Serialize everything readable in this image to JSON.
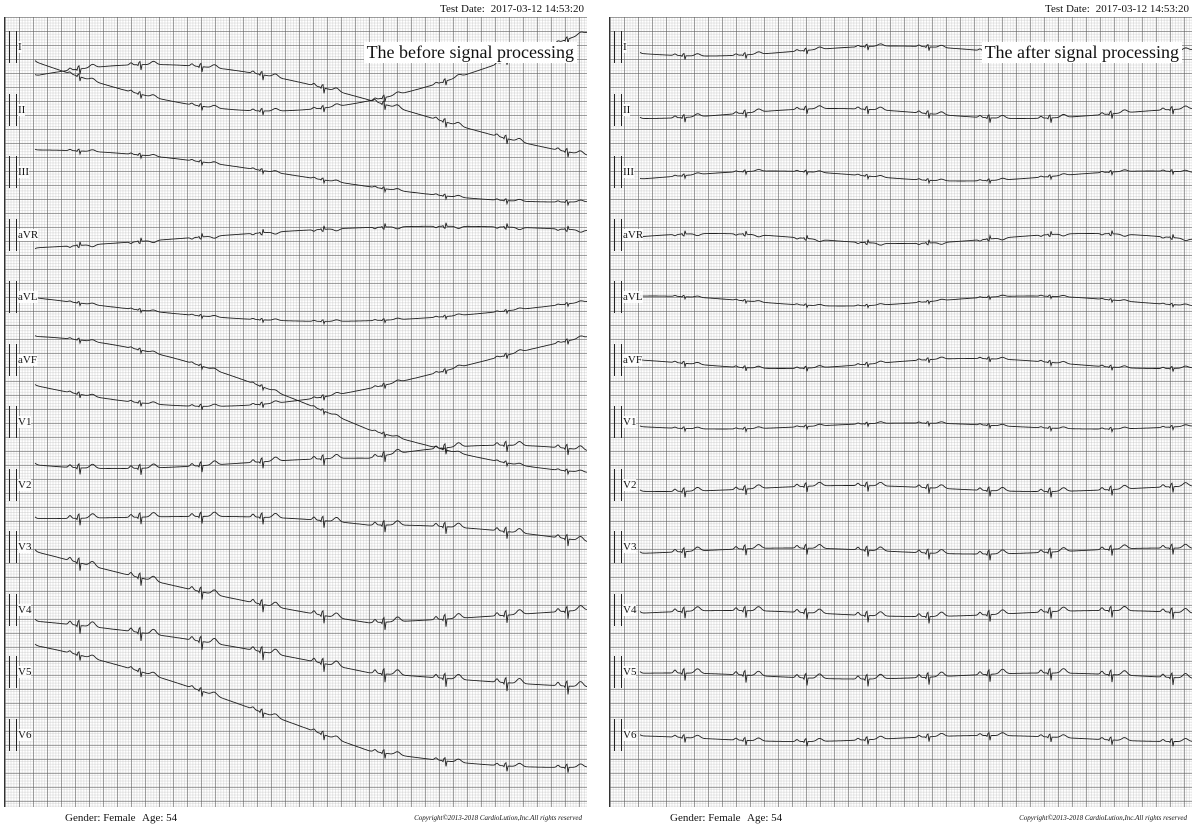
{
  "panels": [
    {
      "title": "The before signal processing",
      "test_date_label": "Test Date:",
      "test_date": "2017-03-12 14:53:20",
      "gender_label": "Gender:",
      "gender": "Female",
      "age_label": "Age:",
      "age": "54",
      "copyright": "Copyright©2013-2018 CardioLution,Inc.All rights reserved"
    },
    {
      "title": "The after signal processing",
      "test_date_label": "Test Date:",
      "test_date": "2017-03-12 14:53:20",
      "gender_label": "Gender:",
      "gender": "Female",
      "age_label": "Age:",
      "age": "54",
      "copyright": "Copyright©2013-2018 CardioLution,Inc.All rights reserved"
    }
  ],
  "leads": [
    "I",
    "II",
    "III",
    "aVR",
    "aVL",
    "aVF",
    "V1",
    "V2",
    "V3",
    "V4",
    "V5",
    "V6"
  ],
  "colors": {
    "grid_major": "#5f5f5f",
    "grid_minor": "#aaaaaa",
    "trace": "#222222"
  }
}
